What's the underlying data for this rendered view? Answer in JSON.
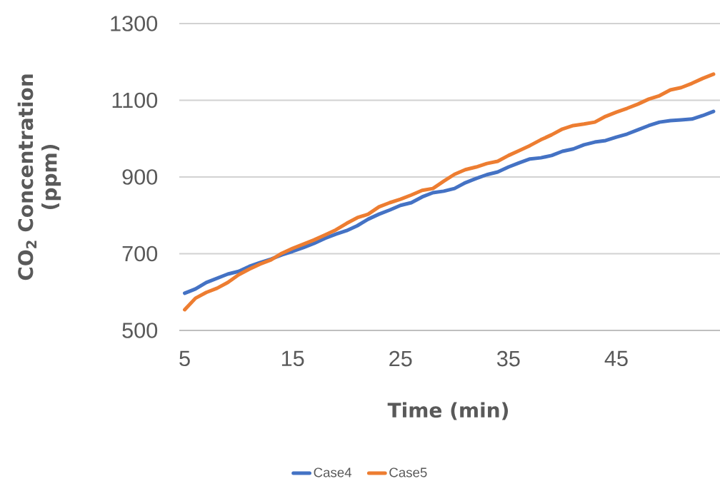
{
  "chart_data": {
    "type": "line",
    "xlabel": "Time (min)",
    "ylabel": "CO$_{2}$ Concentration (ppm)",
    "x": [
      5,
      6,
      7,
      8,
      9,
      10,
      11,
      12,
      13,
      14,
      15,
      16,
      17,
      18,
      19,
      20,
      21,
      22,
      23,
      24,
      25,
      26,
      27,
      28,
      29,
      30,
      31,
      32,
      33,
      34,
      35,
      36,
      37,
      38,
      39,
      40,
      41,
      42,
      43,
      44,
      45,
      46,
      47,
      48,
      49,
      50,
      51,
      52,
      53,
      54
    ],
    "series": [
      {
        "name": "Case4",
        "color": "#4472c4",
        "values": [
          597,
          608,
          625,
          636,
          647,
          654,
          667,
          677,
          686,
          697,
          706,
          716,
          727,
          740,
          751,
          760,
          773,
          790,
          803,
          814,
          826,
          833,
          848,
          859,
          863,
          870,
          885,
          896,
          906,
          913,
          926,
          937,
          947,
          950,
          956,
          967,
          973,
          984,
          991,
          995,
          1004,
          1012,
          1023,
          1034,
          1043,
          1047,
          1049,
          1051,
          1060,
          1071
        ]
      },
      {
        "name": "Case5",
        "color": "#ed7d31",
        "values": [
          554,
          584,
          599,
          610,
          625,
          645,
          660,
          673,
          684,
          701,
          714,
          725,
          736,
          749,
          762,
          779,
          794,
          803,
          822,
          833,
          842,
          853,
          865,
          870,
          889,
          907,
          919,
          926,
          935,
          941,
          956,
          969,
          982,
          997,
          1010,
          1025,
          1034,
          1038,
          1043,
          1058,
          1069,
          1079,
          1090,
          1103,
          1112,
          1127,
          1133,
          1144,
          1157,
          1168
        ]
      }
    ],
    "xlim": [
      4.5,
      54.6
    ],
    "ylim": [
      500,
      1300
    ],
    "yticks": [
      500,
      700,
      900,
      1100,
      1300
    ],
    "xticks": [
      5,
      15,
      25,
      35,
      45
    ],
    "grid": "y",
    "legend": "bottom",
    "marker": "none",
    "line_style": "solid"
  }
}
